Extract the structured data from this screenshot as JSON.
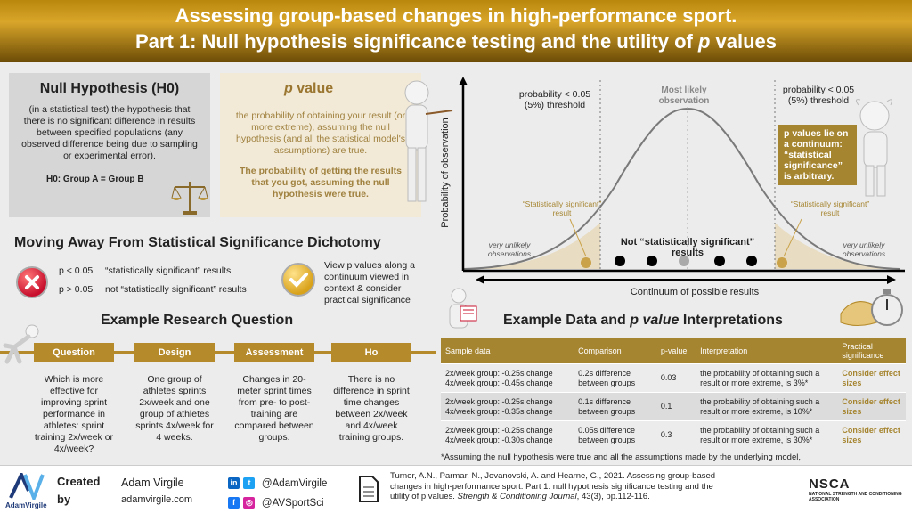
{
  "header": {
    "line1": "Assessing group-based changes in high-performance sport.",
    "line2_prefix": "Part 1: Null hypothesis significance testing and the utility of ",
    "line2_italic": "p",
    "line2_suffix": " values"
  },
  "null_hypothesis": {
    "title": "Null Hypothesis (H0)",
    "definition": "(in a statistical test) the hypothesis that there is no significant difference in results between specified populations (any observed difference being due to sampling or experimental error).",
    "example": "H0: Group A = Group B"
  },
  "p_value": {
    "title_italic": "p",
    "title_rest": " value",
    "definition": "the probability of obtaining your result (or more extreme), assuming the null hypothesis (and all the statistical model's assumptions) are true.",
    "bold_text": "The probability of getting the results that you got, assuming the null hypothesis were true."
  },
  "dichotomy": {
    "title": "Moving Away From  Statistical Significance Dichotomy",
    "row1_p": "p < 0.05",
    "row1_label": "“statistically significant” results",
    "row2_p": "p > 0.05",
    "row2_label": "not “statistically significant” results",
    "view_text": "View p values along a continuum viewed in context & consider practical significance"
  },
  "research_question": {
    "title": "Example Research Question",
    "steps": [
      {
        "label": "Question",
        "text": "Which is more effective for improving sprint performance in athletes: sprint training 2x/week or 4x/week?"
      },
      {
        "label": "Design",
        "text": "One group of athletes sprints 2x/week and one group of athletes sprints 4x/week for 4 weeks."
      },
      {
        "label": "Assessment",
        "text": "Changes in 20-meter sprint times from pre- to post-training are compared between groups."
      },
      {
        "label": "Ho",
        "text": "There is no difference in sprint time changes between 2x/week and 4x/week training groups."
      }
    ]
  },
  "chart": {
    "ylabel": "Probability of observation",
    "xlabel": "Continuum of possible results",
    "threshold_left": "probability < 0.05 (5%) threshold",
    "threshold_right": "probability < 0.05 (5%) threshold",
    "most_likely": "Most likely observation",
    "sig_left": "“Statistically significant” result",
    "sig_right": "“Statistically significant” result",
    "not_sig": "Not “statistically significant” results",
    "unlikely_left": "very unlikely observations",
    "unlikely_right": "very unlikely observations",
    "continuum_note": "p values lie on a continuum: “statistical significance” is arbitrary."
  },
  "chart_data": {
    "type": "area",
    "title": "",
    "xlabel": "Continuum of possible results",
    "ylabel": "Probability of observation",
    "series": [
      {
        "values": []
      }
    ],
    "threshold_colors": {
      "tails": "#e8dcc2",
      "curve": "#7a7a7a",
      "sig_point": "#c9a24a",
      "mean_point": "#aaaaaa",
      "point": "#000000"
    }
  },
  "table": {
    "title_prefix": "Example Data and ",
    "title_italic": "p value",
    "title_suffix": " Interpretations",
    "headers": [
      "Sample data",
      "Comparison",
      "p-value",
      "Interpretation",
      "Practical significance"
    ],
    "rows": [
      {
        "sample1": "2x/week group: -0.25s change",
        "sample2": "4x/week group: -0.45s change",
        "comparison": "0.2s difference between groups",
        "p": "0.03",
        "interpretation": "the probability of obtaining such a result or more extreme, is 3%*",
        "practical": "Consider effect sizes"
      },
      {
        "sample1": "2x/week group: -0.25s change",
        "sample2": "4x/week group: -0.35s change",
        "comparison": "0.1s difference between groups",
        "p": "0.1",
        "interpretation": "the probability of obtaining such a result or more extreme, is 10%*",
        "practical": "Consider effect sizes"
      },
      {
        "sample1": "2x/week group: -0.25s change",
        "sample2": "4x/week group: -0.30s change",
        "comparison": "0.05s difference between groups",
        "p": "0.3",
        "interpretation": "the probability of obtaining such a result or more extreme, is 30%*",
        "practical": "Consider effect sizes"
      }
    ],
    "footnote": "*Assuming the null hypothesis were true and all the assumptions made by the underlying model,"
  },
  "footer": {
    "logo_text": "AdamVirgile",
    "created": "Created",
    "by": "by",
    "name": "Adam Virgile",
    "site": "adamvirgile.com",
    "handle1": "@AdamVirgile",
    "handle2": "@AVSportSci",
    "ref_plain": "Turner, A.N., Parmar, N., Jovanovski, A. and Hearne, G., 2021. Assessing group-based changes in high-performance sport. Part 1: null hypothesis significance testing and the utility of p values. ",
    "ref_italic": "Strength & Conditioning Journal",
    "ref_end": ", 43(3), pp.112-116.",
    "nsca": "NSCA",
    "nsca_sub": "NATIONAL STRENGTH AND CONDITIONING ASSOCIATION"
  }
}
